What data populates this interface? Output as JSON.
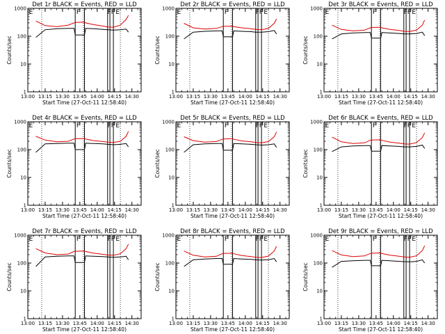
{
  "colors": {
    "events": "#000000",
    "lld": "#dd0000",
    "axes": "#000000",
    "background": "#ffffff"
  },
  "xlabel": "Start Time (27-Oct-11 12:58:40)",
  "ylabel": "Counts/sec",
  "x_ticks": [
    "13:00",
    "13:15",
    "13:30",
    "13:45",
    "14:00",
    "14:15",
    "14:30"
  ],
  "y_ticks": [
    "1",
    "10",
    "100",
    "1000"
  ],
  "ylim": [
    1,
    1000
  ],
  "xlim": [
    "13:00",
    "14:38"
  ],
  "y_scale": "log",
  "dotted_lines_x": [
    "13:12",
    "13:48",
    "14:20"
  ],
  "solid_lines_x": [
    "13:41",
    "13:49",
    "14:09",
    "14:11",
    "14:14"
  ],
  "mark_labels": [
    {
      "text": "E",
      "x": "13:01"
    },
    {
      "text": "F",
      "x": "13:42"
    },
    {
      "text": "F",
      "x": "14:09"
    },
    {
      "text": "F",
      "x": "14:12"
    },
    {
      "text": "E",
      "x": "14:16"
    }
  ],
  "chart_data": [
    {
      "type": "line",
      "title": "Det 1r BLACK = Events, RED = LLD",
      "x": [
        "13:07",
        "13:15",
        "13:25",
        "13:35",
        "13:40",
        "13:41",
        "13:49",
        "13:50",
        "13:57",
        "14:05",
        "14:09",
        "14:14",
        "14:20",
        "14:25",
        "14:27"
      ],
      "series": [
        {
          "name": "Events",
          "values": [
            90,
            170,
            185,
            190,
            190,
            110,
            110,
            190,
            185,
            175,
            170,
            165,
            170,
            180,
            140
          ]
        },
        {
          "name": "LLD",
          "values": [
            350,
            240,
            220,
            250,
            300,
            310,
            320,
            300,
            260,
            230,
            215,
            210,
            250,
            400,
            560
          ]
        }
      ]
    },
    {
      "type": "line",
      "title": "Det 2r BLACK = Events, RED = LLD",
      "x": [
        "13:07",
        "13:15",
        "13:25",
        "13:35",
        "13:40",
        "13:41",
        "13:49",
        "13:50",
        "13:57",
        "14:05",
        "14:09",
        "14:14",
        "14:20",
        "14:25",
        "14:27"
      ],
      "series": [
        {
          "name": "Events",
          "values": [
            80,
            140,
            150,
            155,
            155,
            95,
            95,
            155,
            150,
            145,
            140,
            140,
            145,
            160,
            120
          ]
        },
        {
          "name": "LLD",
          "values": [
            290,
            200,
            180,
            190,
            220,
            225,
            230,
            220,
            200,
            185,
            175,
            170,
            190,
            290,
            420
          ]
        }
      ]
    },
    {
      "type": "line",
      "title": "Det 3r BLACK = Events, RED = LLD",
      "x": [
        "13:07",
        "13:15",
        "13:25",
        "13:35",
        "13:40",
        "13:41",
        "13:49",
        "13:50",
        "13:57",
        "14:05",
        "14:09",
        "14:14",
        "14:20",
        "14:25",
        "14:27"
      ],
      "series": [
        {
          "name": "Events",
          "values": [
            80,
            120,
            130,
            135,
            135,
            85,
            85,
            135,
            130,
            125,
            120,
            120,
            125,
            140,
            105
          ]
        },
        {
          "name": "LLD",
          "values": [
            250,
            175,
            155,
            165,
            200,
            205,
            210,
            200,
            175,
            160,
            150,
            148,
            165,
            250,
            380
          ]
        }
      ]
    },
    {
      "type": "line",
      "title": "Det 4r BLACK = Events, RED = LLD",
      "x": [
        "13:07",
        "13:15",
        "13:25",
        "13:35",
        "13:40",
        "13:41",
        "13:49",
        "13:50",
        "13:57",
        "14:05",
        "14:09",
        "14:14",
        "14:20",
        "14:25",
        "14:27"
      ],
      "series": [
        {
          "name": "Events",
          "values": [
            80,
            160,
            165,
            170,
            170,
            100,
            100,
            170,
            165,
            160,
            155,
            150,
            155,
            165,
            125
          ]
        },
        {
          "name": "LLD",
          "values": [
            300,
            220,
            190,
            200,
            240,
            245,
            250,
            240,
            210,
            195,
            185,
            180,
            200,
            300,
            450
          ]
        }
      ]
    },
    {
      "type": "line",
      "title": "Det 5r BLACK = Events, RED = LLD",
      "x": [
        "13:07",
        "13:15",
        "13:25",
        "13:35",
        "13:40",
        "13:41",
        "13:49",
        "13:50",
        "13:57",
        "14:05",
        "14:09",
        "14:14",
        "14:20",
        "14:25",
        "14:27"
      ],
      "series": [
        {
          "name": "Events",
          "values": [
            80,
            150,
            160,
            165,
            165,
            95,
            95,
            165,
            160,
            155,
            150,
            145,
            150,
            160,
            120
          ]
        },
        {
          "name": "LLD",
          "values": [
            290,
            210,
            185,
            195,
            235,
            240,
            245,
            235,
            205,
            190,
            180,
            175,
            195,
            290,
            430
          ]
        }
      ]
    },
    {
      "type": "line",
      "title": "Det 6r BLACK = Events, RED = LLD",
      "x": [
        "13:07",
        "13:15",
        "13:25",
        "13:35",
        "13:40",
        "13:41",
        "13:49",
        "13:50",
        "13:57",
        "14:05",
        "14:09",
        "14:14",
        "14:20",
        "14:25",
        "14:27"
      ],
      "series": [
        {
          "name": "Events",
          "values": [
            85,
            125,
            135,
            140,
            140,
            88,
            88,
            140,
            135,
            130,
            125,
            125,
            130,
            145,
            110
          ]
        },
        {
          "name": "LLD",
          "values": [
            280,
            190,
            165,
            175,
            215,
            220,
            225,
            215,
            185,
            170,
            160,
            158,
            180,
            270,
            400
          ]
        }
      ]
    },
    {
      "type": "line",
      "title": "Det 7r BLACK = Events, RED = LLD",
      "x": [
        "13:07",
        "13:15",
        "13:25",
        "13:35",
        "13:40",
        "13:41",
        "13:49",
        "13:50",
        "13:57",
        "14:05",
        "14:09",
        "14:14",
        "14:20",
        "14:25",
        "14:27"
      ],
      "series": [
        {
          "name": "Events",
          "values": [
            75,
            165,
            175,
            180,
            180,
            105,
            105,
            180,
            175,
            170,
            165,
            160,
            165,
            175,
            130
          ]
        },
        {
          "name": "LLD",
          "values": [
            330,
            230,
            200,
            210,
            260,
            265,
            270,
            260,
            225,
            205,
            195,
            190,
            215,
            330,
            480
          ]
        }
      ]
    },
    {
      "type": "line",
      "title": "Det 8r BLACK = Events, RED = LLD",
      "x": [
        "13:07",
        "13:15",
        "13:25",
        "13:35",
        "13:40",
        "13:41",
        "13:49",
        "13:50",
        "13:57",
        "14:05",
        "14:09",
        "14:14",
        "14:20",
        "14:25",
        "14:27"
      ],
      "series": [
        {
          "name": "Events",
          "values": [
            75,
            130,
            140,
            145,
            145,
            90,
            90,
            145,
            140,
            135,
            130,
            128,
            132,
            145,
            110
          ]
        },
        {
          "name": "LLD",
          "values": [
            270,
            190,
            165,
            175,
            215,
            220,
            225,
            215,
            185,
            170,
            160,
            158,
            178,
            270,
            400
          ]
        }
      ]
    },
    {
      "type": "line",
      "title": "Det 9r BLACK = Events, RED = LLD",
      "x": [
        "13:07",
        "13:15",
        "13:25",
        "13:35",
        "13:40",
        "13:41",
        "13:49",
        "13:50",
        "13:57",
        "14:05",
        "14:09",
        "14:14",
        "14:20",
        "14:25",
        "14:27"
      ],
      "series": [
        {
          "name": "Events",
          "values": [
            70,
            115,
            120,
            125,
            125,
            80,
            80,
            125,
            120,
            115,
            112,
            110,
            115,
            130,
            100
          ]
        },
        {
          "name": "LLD",
          "values": [
            280,
            195,
            170,
            180,
            220,
            225,
            230,
            220,
            190,
            175,
            165,
            160,
            182,
            280,
            420
          ]
        }
      ]
    }
  ]
}
